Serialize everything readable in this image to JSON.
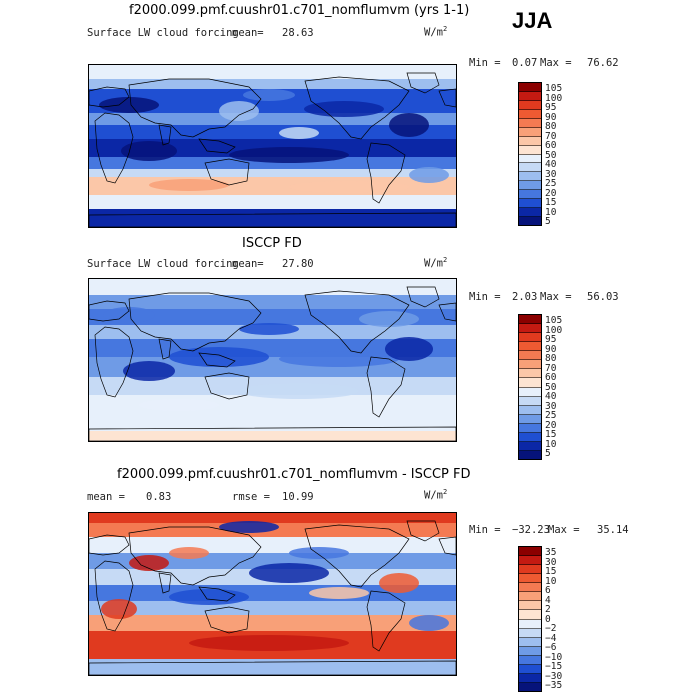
{
  "season": "JJA",
  "panels": [
    {
      "title": "f2000.099.pmf.cuushr01.c701_nomflumvm (yrs 1-1)",
      "variable": "Surface LW cloud forcing",
      "mean_label": "mean=",
      "mean_value": "28.63",
      "units_prefix": "W/m",
      "units_exp": "2",
      "min_label": "Min =",
      "min_value": "0.07",
      "max_label": "Max =",
      "max_value": "76.62",
      "colorbar_labels": [
        "105",
        "100",
        "95",
        "90",
        "80",
        "70",
        "60",
        "50",
        "40",
        "30",
        "25",
        "20",
        "15",
        "10",
        "5"
      ],
      "colorbar_colors": [
        "#8b0000",
        "#c41a12",
        "#e03a1f",
        "#ee5a32",
        "#f47a52",
        "#f8a078",
        "#fbc7a8",
        "#fde4d2",
        "#e7f0fb",
        "#c6daf5",
        "#9dbeef",
        "#6f9be6",
        "#4677df",
        "#1f4fd2",
        "#0b27a6",
        "#06137a"
      ],
      "field": {
        "type": "contour-map",
        "regime": "model",
        "mean": 28.63,
        "min": 0.07,
        "max": 76.62
      }
    },
    {
      "title": "ISCCP FD",
      "variable": "Surface LW cloud forcing",
      "mean_label": "mean=",
      "mean_value": "27.80",
      "units_prefix": "W/m",
      "units_exp": "2",
      "min_label": "Min =",
      "min_value": "2.03",
      "max_label": "Max =",
      "max_value": "56.03",
      "colorbar_labels": [
        "105",
        "100",
        "95",
        "90",
        "80",
        "70",
        "60",
        "50",
        "40",
        "30",
        "25",
        "20",
        "15",
        "10",
        "5"
      ],
      "colorbar_colors": [
        "#8b0000",
        "#c41a12",
        "#e03a1f",
        "#ee5a32",
        "#f47a52",
        "#f8a078",
        "#fbc7a8",
        "#fde4d2",
        "#e7f0fb",
        "#c6daf5",
        "#9dbeef",
        "#6f9be6",
        "#4677df",
        "#1f4fd2",
        "#0b27a6",
        "#06137a"
      ],
      "field": {
        "type": "contour-map",
        "regime": "obs",
        "mean": 27.8,
        "min": 2.03,
        "max": 56.03
      }
    },
    {
      "title": "f2000.099.pmf.cuushr01.c701_nomflumvm - ISCCP FD",
      "variable": "",
      "mean_label": "mean =",
      "mean_value": "0.83",
      "rmse_label": "rmse =",
      "rmse_value": "10.99",
      "units_prefix": "W/m",
      "units_exp": "2",
      "min_label": "Min =",
      "min_value": "−32.23",
      "max_label": "Max =",
      "max_value": "35.14",
      "colorbar_labels": [
        "35",
        "30",
        "15",
        "10",
        "6",
        "4",
        "2",
        "0",
        "−2",
        "−4",
        "−6",
        "−10",
        "−15",
        "−30",
        "−35"
      ],
      "colorbar_colors": [
        "#8b0000",
        "#c41a12",
        "#e03a1f",
        "#ee5a32",
        "#f47a52",
        "#f8a078",
        "#fbc7a8",
        "#fde4d2",
        "#e7f0fb",
        "#c6daf5",
        "#9dbeef",
        "#6f9be6",
        "#4677df",
        "#1f4fd2",
        "#0b27a6",
        "#06137a"
      ],
      "field": {
        "type": "contour-map",
        "regime": "diff",
        "mean": 0.83,
        "min": -32.23,
        "max": 35.14
      }
    }
  ]
}
